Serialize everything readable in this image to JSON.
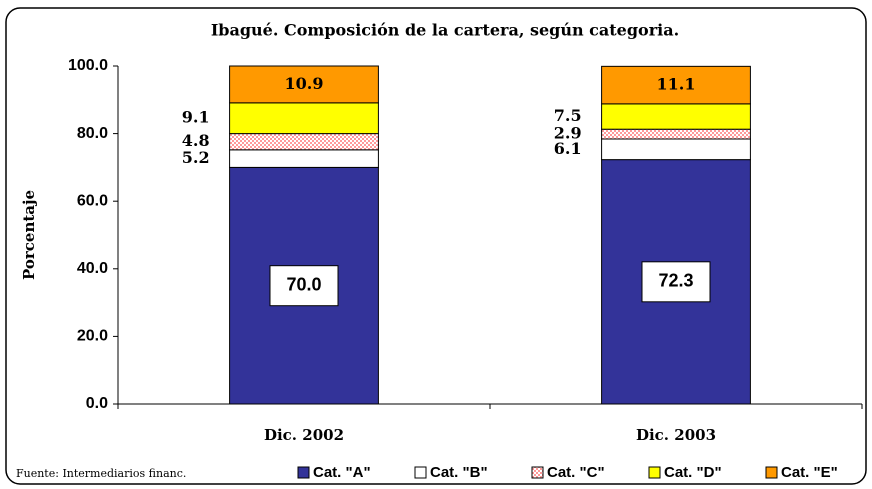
{
  "chart_data": {
    "type": "stacked_bar",
    "title": "Ibagué. Composición de la cartera, según categoria.",
    "y_label": "Porcentaje",
    "source": "Fuente: Intermediarios financ.",
    "categories": [
      "Dic. 2002",
      "Dic. 2003"
    ],
    "series": [
      {
        "name": "Cat. \"A\"",
        "color": "#333399",
        "values": [
          70.0,
          72.3
        ],
        "value_labels": [
          "70.0",
          "72.3"
        ]
      },
      {
        "name": "Cat. \"B\"",
        "color": "#ffffff",
        "values": [
          5.2,
          6.1
        ]
      },
      {
        "name": "Cat. \"C\"",
        "color": "#ff9999",
        "values": [
          4.8,
          2.9
        ]
      },
      {
        "name": "Cat. \"D\"",
        "color": "#ffff00",
        "values": [
          9.1,
          7.5
        ]
      },
      {
        "name": "Cat. \"E\"",
        "color": "#ff9900",
        "values": [
          10.9,
          11.1
        ]
      }
    ],
    "ylim": [
      0,
      100
    ],
    "yticks": [
      {
        "value": 0,
        "label": "0.0"
      },
      {
        "value": 20,
        "label": "20.0"
      },
      {
        "value": 40,
        "label": "40.0"
      },
      {
        "value": 60,
        "label": "60.0"
      },
      {
        "value": 80,
        "label": "80.0"
      },
      {
        "value": 100,
        "label": "100.0"
      }
    ],
    "legend": "bottom"
  }
}
